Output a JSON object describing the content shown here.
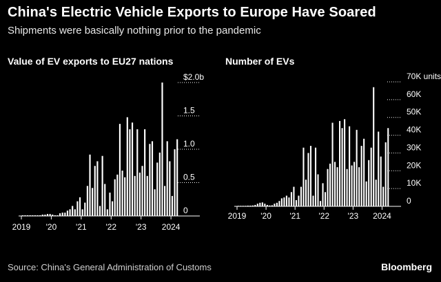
{
  "title": "China's Electric Vehicle Exports to Europe Have Soared",
  "subtitle": "Shipments were basically nothing prior to the pandemic",
  "source": "Source: China's General Administration of Customs",
  "logo": "Bloomberg",
  "colors": {
    "background": "#000000",
    "bars": "#ffffff",
    "text": "#ffffff"
  },
  "chart_data": [
    {
      "type": "bar",
      "title": "Value of EV exports to EU27 nations",
      "x_tick_labels": [
        "2019",
        "'20",
        "'21",
        "'22",
        "'23",
        "2024"
      ],
      "y_ticks": [
        0,
        0.5,
        1.0,
        1.5,
        2.0
      ],
      "y_tick_labels": [
        "0",
        "0.5",
        "1.0",
        "1.5",
        "$2.0b"
      ],
      "ylim": [
        0,
        2.0
      ],
      "period": "monthly, Jan 2019 – Mar 2024",
      "values": [
        0.01,
        0.01,
        0.01,
        0.01,
        0.01,
        0.01,
        0.01,
        0.01,
        0.02,
        0.02,
        0.03,
        0.03,
        0.02,
        0.01,
        0.01,
        0.04,
        0.05,
        0.05,
        0.08,
        0.1,
        0.15,
        0.1,
        0.22,
        0.28,
        0.1,
        0.2,
        0.45,
        0.92,
        0.42,
        0.75,
        0.82,
        0.15,
        0.9,
        0.48,
        0.1,
        0.35,
        0.22,
        0.55,
        0.62,
        1.38,
        0.68,
        0.58,
        1.48,
        1.3,
        1.4,
        0.6,
        1.3,
        0.65,
        0.75,
        1.3,
        0.6,
        1.08,
        1.12,
        0.4,
        0.8,
        0.95,
        2.0,
        0.45,
        1.12,
        0.82,
        0.3,
        1.0,
        1.15
      ]
    },
    {
      "type": "bar",
      "title": "Number of EVs",
      "x_tick_labels": [
        "2019",
        "'20",
        "'21",
        "'22",
        "'23",
        "2024"
      ],
      "y_ticks": [
        0,
        10,
        20,
        30,
        40,
        50,
        60,
        70
      ],
      "y_tick_labels": [
        "0",
        "10K",
        "20K",
        "30K",
        "40K",
        "50K",
        "60K",
        "70K units"
      ],
      "ylim": [
        0,
        70
      ],
      "unit": "thousand units",
      "period": "monthly, Jan 2019 – Mar 2024",
      "values": [
        0.3,
        0.3,
        0.3,
        0.3,
        0.4,
        0.4,
        0.5,
        0.8,
        1.5,
        2.0,
        2.2,
        1.5,
        0.8,
        0.5,
        0.6,
        1.5,
        2.0,
        3.0,
        4.5,
        5.0,
        6.0,
        5.0,
        8.0,
        11.0,
        3.5,
        6.0,
        11.0,
        33.0,
        15.0,
        30.0,
        34.0,
        6.0,
        33.0,
        18.0,
        3.0,
        13.0,
        8.0,
        21.0,
        24.0,
        47.0,
        25.0,
        22.0,
        48.0,
        44.0,
        49.0,
        21.0,
        45.0,
        23.0,
        25.0,
        43.0,
        22.0,
        34.0,
        38.0,
        14.0,
        26.0,
        33.0,
        67.0,
        15.0,
        42.0,
        28.0,
        11.0,
        36.0,
        44.0
      ]
    }
  ]
}
